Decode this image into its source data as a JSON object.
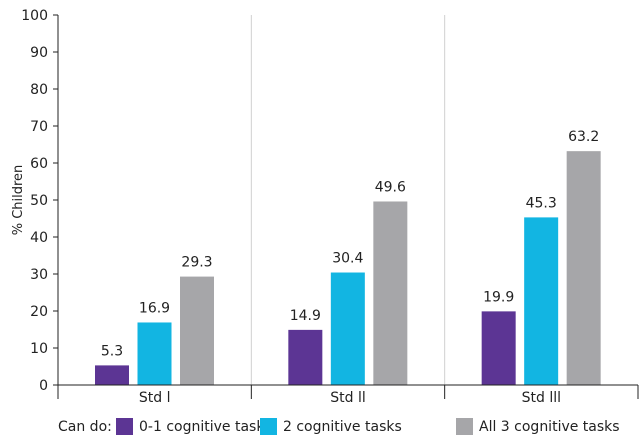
{
  "chart_data": {
    "type": "bar",
    "ylabel": "% Children",
    "ylim": [
      0,
      100
    ],
    "yticks": [
      0,
      10,
      20,
      30,
      40,
      50,
      60,
      70,
      80,
      90,
      100
    ],
    "grid": "vertical-group-separators",
    "categories": [
      "Std l",
      "Std ll",
      "Std lll"
    ],
    "series": [
      {
        "name": "0-1 cognitive tasks",
        "color": "#5c3594",
        "values": [
          5.3,
          14.9,
          19.9
        ]
      },
      {
        "name": "2 cognitive tasks",
        "color": "#12b5e2",
        "values": [
          16.9,
          30.4,
          45.3
        ]
      },
      {
        "name": "All 3 cognitive tasks",
        "color": "#a6a6a9",
        "values": [
          29.3,
          49.6,
          63.2
        ]
      }
    ],
    "legend": {
      "title": "Can do:",
      "placement": "bottom"
    }
  }
}
